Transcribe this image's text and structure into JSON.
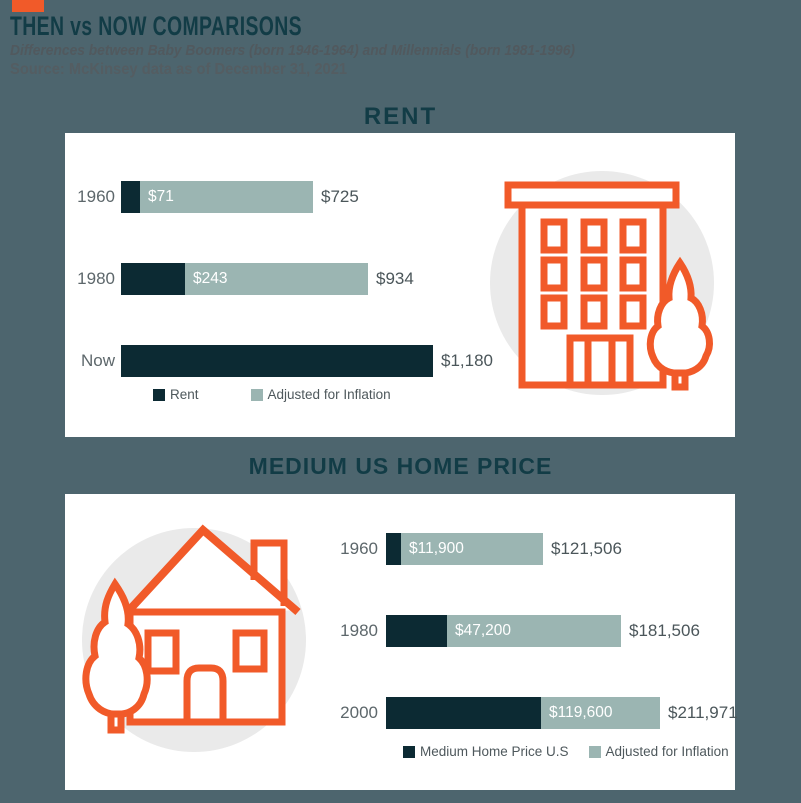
{
  "header": {
    "title": "THEN vs NOW COMPARISONS",
    "subtitle": "Differences between Baby Boomers (born 1946-1964) and Millennials (born 1981-1996)",
    "source": "Source: McKinsey data as of December 31, 2021"
  },
  "colors": {
    "background": "#4d656e",
    "panel": "#ffffff",
    "accent_orange": "#f15a29",
    "title_teal": "#123c46",
    "bar_primary_dark": "#0c2a33",
    "bar_inflation_sage": "#9bb5b2",
    "icon_circle_gray": "#eaeaea",
    "muted_text": "#5d676b",
    "value_text": "#4b565a"
  },
  "icons": {
    "rent_section": "apartment-building-icon",
    "home_section": "house-icon"
  },
  "chart_data": [
    {
      "type": "bar",
      "orientation": "horizontal",
      "title": "RENT",
      "categories": [
        "1960",
        "1980",
        "Now"
      ],
      "series": [
        {
          "name": "Rent",
          "color": "#0c2a33",
          "values": [
            71,
            243,
            1180
          ],
          "labels": [
            "$71",
            "$243",
            "$1,180"
          ]
        },
        {
          "name": "Adjusted for Inflation",
          "color": "#9bb5b2",
          "values": [
            725,
            934,
            null
          ],
          "labels": [
            "$725",
            "$934",
            null
          ]
        }
      ],
      "xmax": 1180,
      "legend_position": "bottom",
      "grid": false
    },
    {
      "type": "bar",
      "orientation": "horizontal",
      "title": "MEDIUM US HOME PRICE",
      "categories": [
        "1960",
        "1980",
        "2000"
      ],
      "series": [
        {
          "name": "Medium Home Price U.S",
          "color": "#0c2a33",
          "values": [
            11900,
            47200,
            119600
          ],
          "labels": [
            "$11,900",
            "$47,200",
            "$119,600"
          ]
        },
        {
          "name": "Adjusted for Inflation",
          "color": "#9bb5b2",
          "values": [
            121506,
            181506,
            211971
          ],
          "labels": [
            "$121,506",
            "$181,506",
            "$211,971"
          ]
        }
      ],
      "xmax": 211971,
      "legend_position": "bottom",
      "grid": false
    }
  ]
}
